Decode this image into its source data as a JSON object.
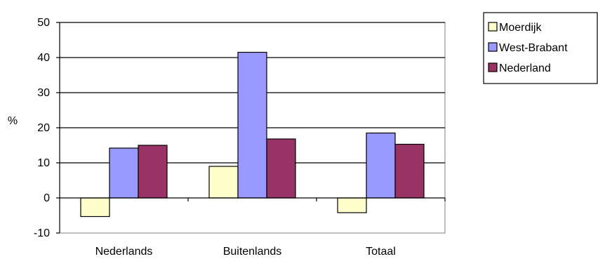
{
  "chart_data": {
    "type": "bar",
    "title": "",
    "xlabel": "",
    "ylabel": "%",
    "ylim": [
      -10,
      50
    ],
    "yticks": [
      -10,
      0,
      10,
      20,
      30,
      40,
      50
    ],
    "grid": true,
    "legend_position": "top-right",
    "categories": [
      "Nederlands",
      "Buitenlands",
      "Totaal"
    ],
    "series": [
      {
        "name": "Moerdijk",
        "color": "#ffffcc",
        "values": [
          -5.3,
          9.0,
          -4.2
        ]
      },
      {
        "name": "West-Brabant",
        "color": "#9999ff",
        "values": [
          14.2,
          41.5,
          18.5
        ]
      },
      {
        "name": "Nederland",
        "color": "#993366",
        "values": [
          15.0,
          16.8,
          15.3
        ]
      }
    ]
  }
}
